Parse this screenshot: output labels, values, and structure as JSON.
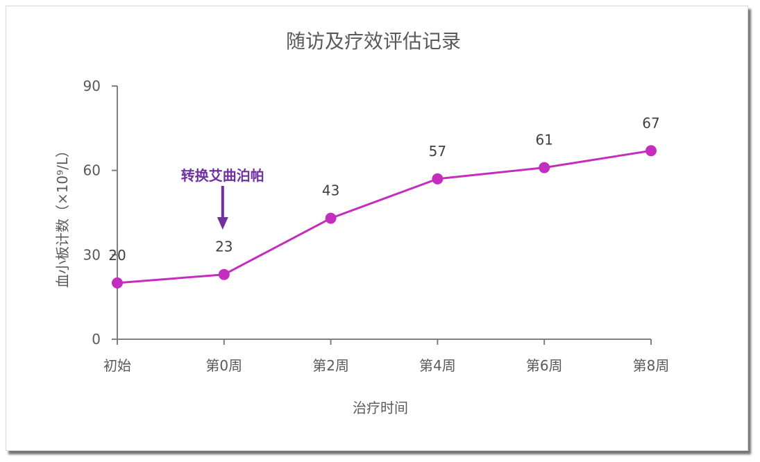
{
  "chart_data": {
    "type": "line",
    "title": "随访及疗效评估记录",
    "xlabel": "治疗时间",
    "ylabel": "血小板计数（×10⁹/L）",
    "categories": [
      "初始",
      "第0周",
      "第2周",
      "第4周",
      "第6周",
      "第8周"
    ],
    "values": [
      20,
      23,
      43,
      57,
      61,
      67
    ],
    "data_labels": [
      "20",
      "23",
      "43",
      "57",
      "61",
      "67"
    ],
    "ylim": [
      0,
      90
    ],
    "yticks": [
      0,
      30,
      60,
      90
    ],
    "ytick_labels": [
      "0",
      "30",
      "60",
      "90"
    ],
    "grid": false,
    "legend": "none",
    "series_color": "#C42EBE",
    "annotation": {
      "text": "转换艾曲泊帕",
      "category": "第0周",
      "color": "#7030A0"
    }
  }
}
